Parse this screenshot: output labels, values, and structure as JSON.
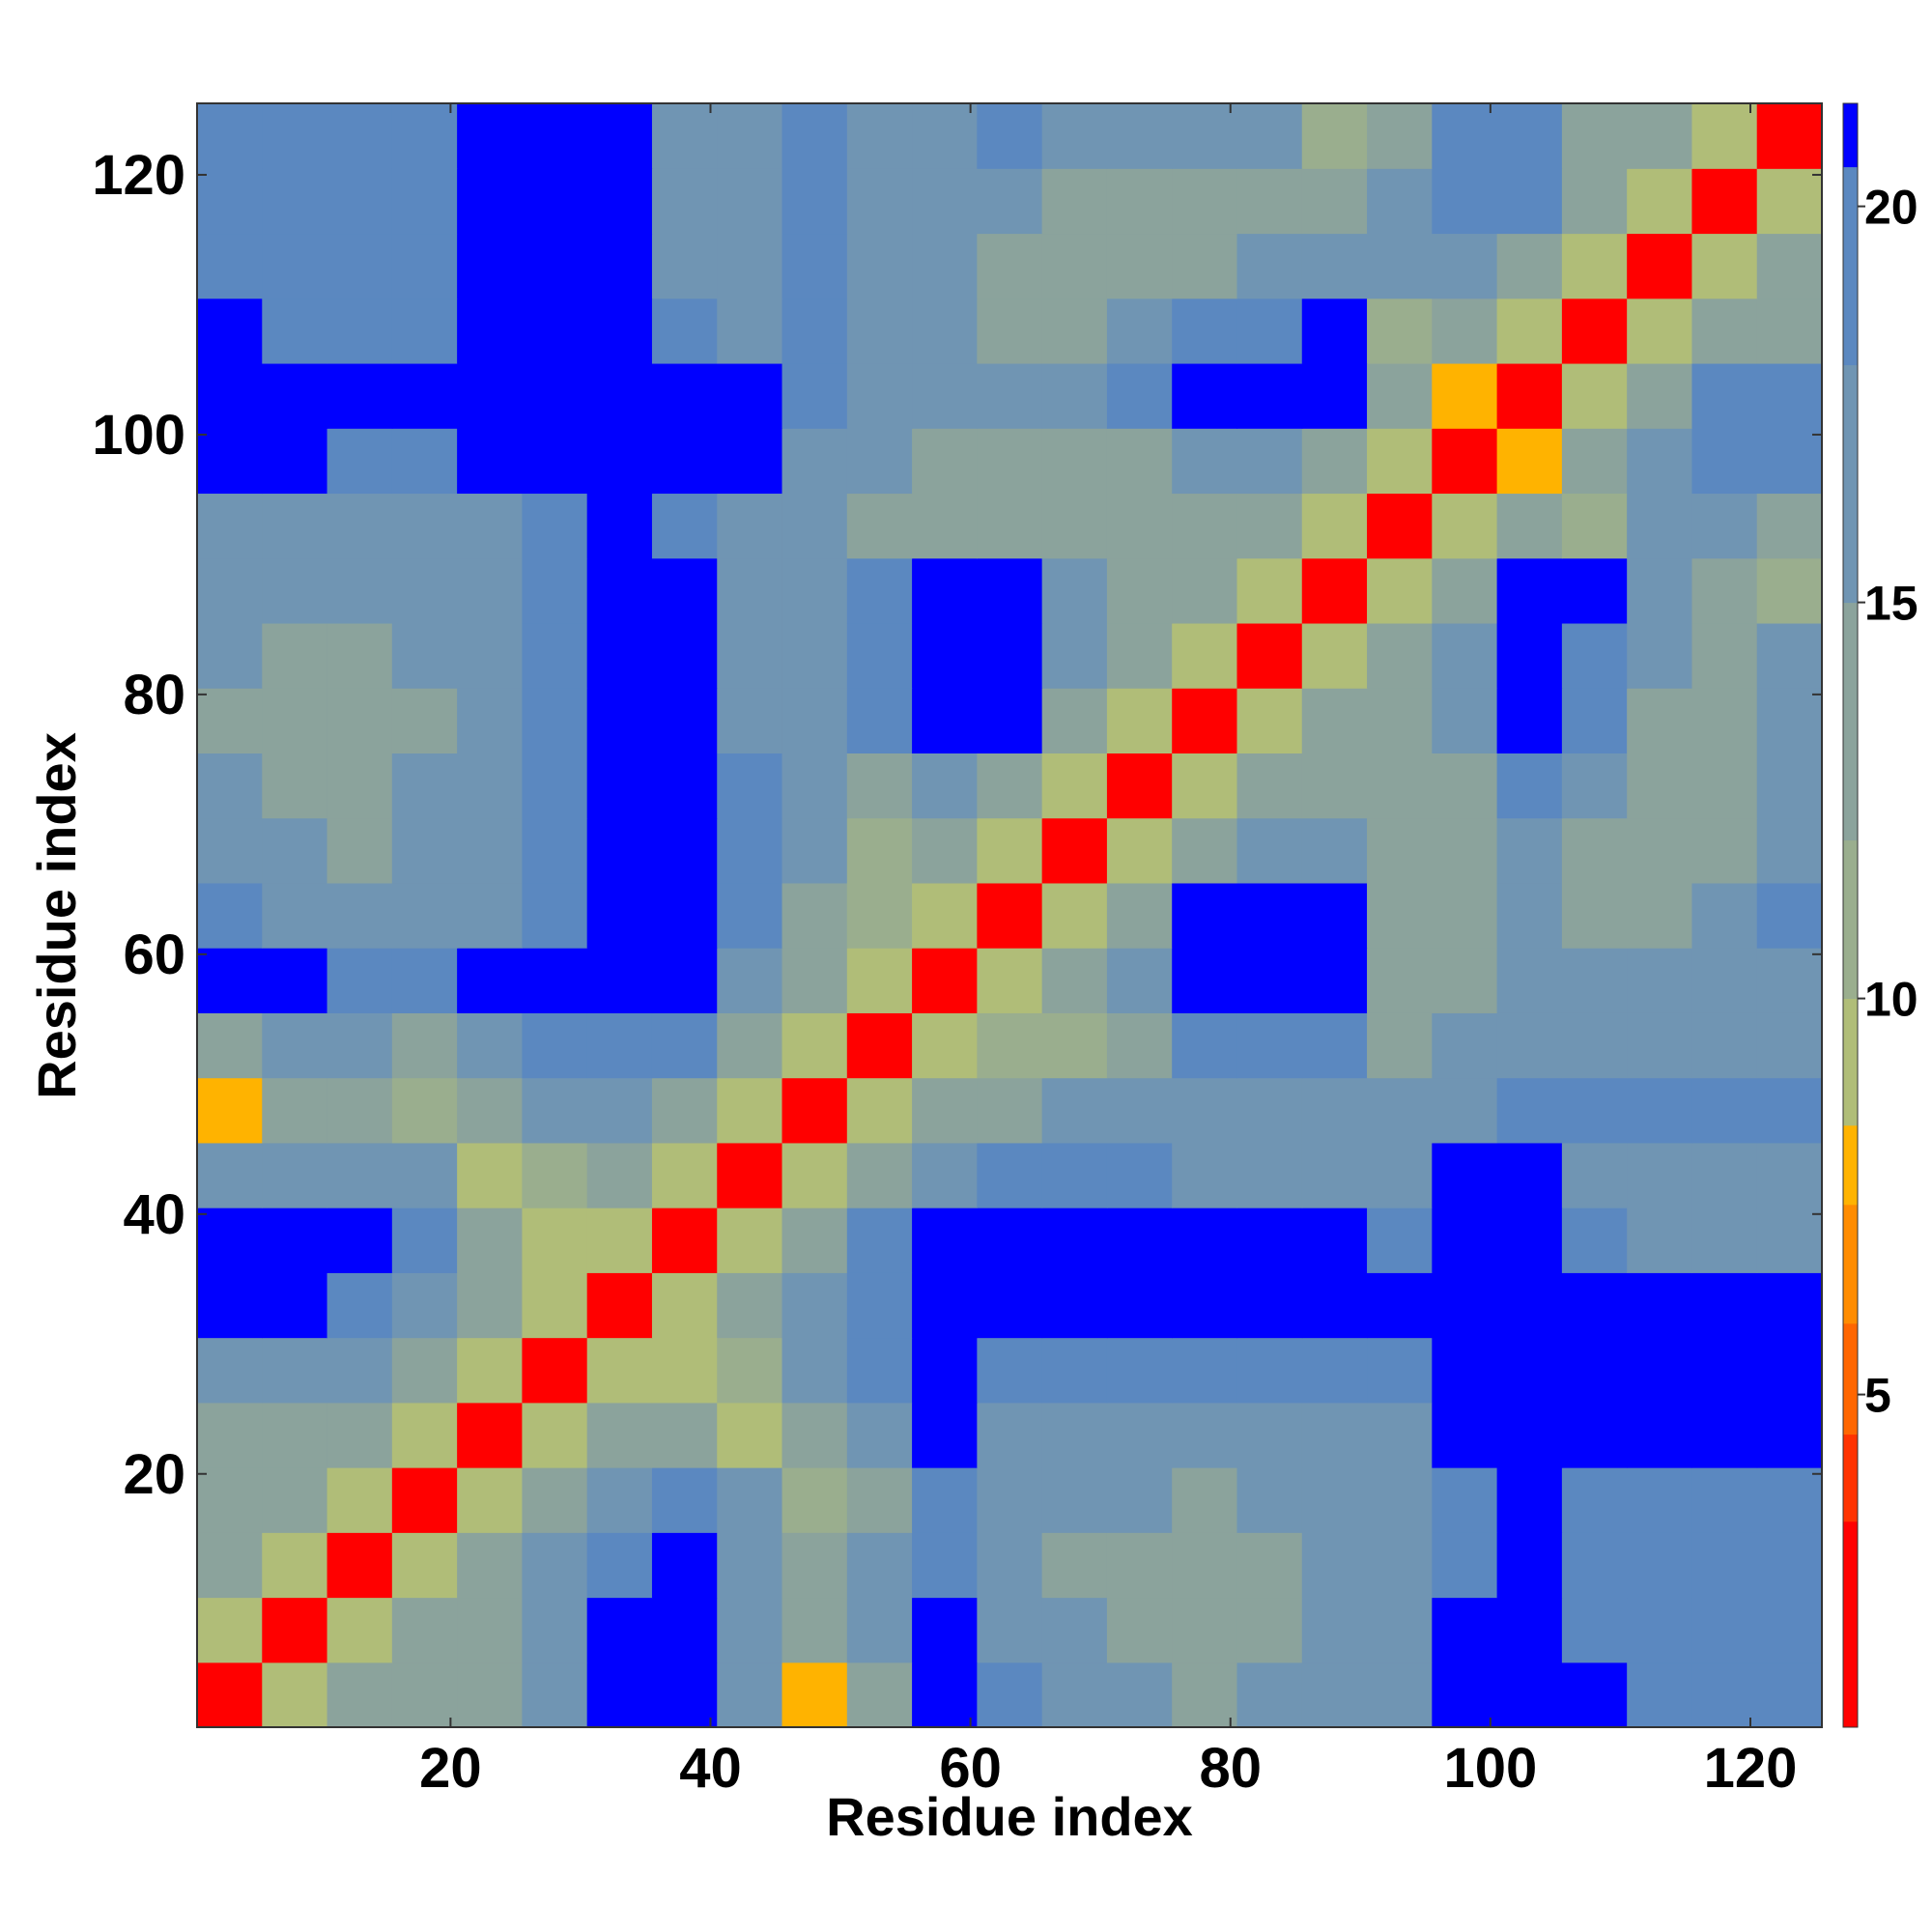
{
  "chart_data": {
    "type": "heatmap",
    "xlabel": "Residue index",
    "ylabel": "Residue index",
    "x": [
      3,
      8,
      13,
      18,
      23,
      28,
      33,
      38,
      43,
      48,
      53,
      58,
      63,
      68,
      73,
      78,
      83,
      88,
      93,
      98,
      103,
      108,
      113,
      118,
      123
    ],
    "y": [
      3,
      8,
      13,
      18,
      23,
      28,
      33,
      38,
      43,
      48,
      53,
      58,
      63,
      68,
      73,
      78,
      83,
      88,
      93,
      98,
      103,
      108,
      113,
      118,
      123
    ],
    "z": [
      [
        3,
        9,
        12,
        13,
        14,
        15,
        21,
        21,
        15,
        8,
        14,
        21,
        19,
        16,
        16,
        14,
        15,
        16,
        17,
        21,
        21,
        21,
        20,
        19,
        20
      ],
      [
        9,
        3,
        9,
        12,
        13,
        15,
        21,
        21,
        16,
        12,
        15,
        21,
        17,
        15,
        14,
        14,
        14,
        15,
        16,
        21,
        21,
        20,
        19,
        19,
        20
      ],
      [
        12,
        9,
        3,
        9,
        12,
        15,
        19,
        21,
        17,
        13,
        15,
        19,
        16,
        13,
        12,
        13,
        14,
        15,
        16,
        20,
        21,
        20,
        19,
        19,
        19
      ],
      [
        13,
        12,
        9,
        3,
        9,
        13,
        16,
        20,
        16,
        11,
        14,
        18,
        17,
        15,
        15,
        14,
        15,
        16,
        16,
        20,
        21,
        20,
        19,
        19,
        19
      ],
      [
        14,
        13,
        12,
        9,
        3,
        9,
        12,
        14,
        9,
        12,
        17,
        21,
        16,
        15,
        15,
        15,
        15,
        16,
        17,
        21,
        21,
        21,
        21,
        21,
        21
      ],
      [
        15,
        15,
        15,
        13,
        9,
        3,
        9,
        9,
        11,
        15,
        19,
        21,
        19,
        19,
        19,
        19,
        19,
        19,
        19,
        21,
        21,
        21,
        21,
        21,
        21
      ],
      [
        21,
        21,
        19,
        16,
        12,
        9,
        3,
        9,
        13,
        15,
        18,
        21,
        21,
        21,
        21,
        21,
        21,
        21,
        21,
        21,
        21,
        21,
        21,
        21,
        21
      ],
      [
        21,
        21,
        21,
        20,
        14,
        9,
        9,
        3,
        9,
        13,
        18,
        21,
        21,
        21,
        21,
        21,
        21,
        21,
        20,
        21,
        21,
        20,
        17,
        16,
        17
      ],
      [
        15,
        16,
        17,
        16,
        9,
        11,
        13,
        9,
        3,
        9,
        13,
        16,
        19,
        19,
        18,
        16,
        16,
        16,
        17,
        21,
        21,
        17,
        15,
        15,
        16
      ],
      [
        8,
        12,
        13,
        11,
        12,
        15,
        15,
        13,
        9,
        3,
        9,
        12,
        14,
        15,
        16,
        16,
        16,
        15,
        16,
        17,
        19,
        19,
        19,
        19,
        20
      ],
      [
        14,
        15,
        15,
        14,
        17,
        19,
        18,
        18,
        13,
        9,
        3,
        9,
        11,
        10,
        13,
        18,
        18,
        18,
        14,
        15,
        16,
        17,
        16,
        16,
        17
      ],
      [
        21,
        21,
        19,
        18,
        21,
        21,
        21,
        21,
        16,
        12,
        9,
        3,
        9,
        12,
        16,
        21,
        21,
        21,
        14,
        13,
        17,
        17,
        16,
        15,
        17
      ],
      [
        19,
        17,
        16,
        17,
        16,
        19,
        21,
        21,
        19,
        14,
        11,
        9,
        3,
        9,
        13,
        21,
        21,
        21,
        13,
        12,
        16,
        12,
        13,
        15,
        18
      ],
      [
        16,
        15,
        13,
        15,
        15,
        19,
        21,
        21,
        19,
        15,
        10,
        12,
        9,
        3,
        9,
        12,
        16,
        17,
        13,
        12,
        17,
        14,
        12,
        13,
        16
      ],
      [
        16,
        14,
        12,
        15,
        15,
        19,
        21,
        21,
        18,
        16,
        13,
        16,
        13,
        9,
        3,
        9,
        12,
        14,
        14,
        14,
        19,
        16,
        13,
        12,
        15
      ],
      [
        14,
        14,
        13,
        14,
        15,
        19,
        21,
        21,
        16,
        16,
        18,
        21,
        21,
        12,
        9,
        3,
        9,
        12,
        14,
        16,
        21,
        18,
        14,
        12,
        15
      ],
      [
        15,
        14,
        14,
        15,
        15,
        19,
        21,
        21,
        16,
        16,
        18,
        21,
        21,
        16,
        12,
        9,
        3,
        9,
        12,
        15,
        21,
        20,
        16,
        13,
        15
      ],
      [
        16,
        15,
        15,
        16,
        16,
        19,
        21,
        21,
        16,
        15,
        18,
        21,
        21,
        17,
        14,
        12,
        9,
        3,
        9,
        12,
        21,
        21,
        17,
        14,
        10
      ],
      [
        17,
        16,
        16,
        16,
        17,
        19,
        21,
        20,
        17,
        16,
        14,
        14,
        13,
        13,
        14,
        14,
        12,
        9,
        3,
        9,
        12,
        11,
        15,
        16,
        13
      ],
      [
        21,
        21,
        20,
        20,
        21,
        21,
        21,
        21,
        21,
        17,
        15,
        13,
        12,
        12,
        14,
        16,
        15,
        12,
        9,
        3,
        8,
        13,
        17,
        20,
        20
      ],
      [
        21,
        21,
        21,
        21,
        21,
        21,
        21,
        21,
        21,
        19,
        16,
        17,
        16,
        17,
        19,
        21,
        21,
        21,
        12,
        8,
        3,
        9,
        13,
        20,
        19
      ],
      [
        21,
        20,
        20,
        20,
        21,
        21,
        21,
        20,
        17,
        19,
        17,
        17,
        12,
        14,
        16,
        18,
        20,
        21,
        11,
        13,
        9,
        3,
        9,
        12,
        13
      ],
      [
        20,
        19,
        19,
        19,
        21,
        21,
        21,
        17,
        15,
        19,
        16,
        16,
        13,
        12,
        13,
        14,
        16,
        17,
        15,
        17,
        13,
        9,
        3,
        9,
        12
      ],
      [
        19,
        19,
        19,
        19,
        21,
        21,
        21,
        16,
        15,
        19,
        16,
        15,
        15,
        13,
        12,
        12,
        13,
        14,
        16,
        20,
        20,
        12,
        9,
        3,
        9
      ],
      [
        20,
        20,
        19,
        19,
        21,
        21,
        21,
        17,
        16,
        20,
        17,
        17,
        18,
        16,
        15,
        15,
        15,
        10,
        13,
        20,
        19,
        13,
        12,
        9,
        3
      ]
    ],
    "xlim": [
      0.5,
      125.5
    ],
    "ylim": [
      0.5,
      125.5
    ],
    "xticks": [
      20,
      40,
      60,
      80,
      100,
      120
    ],
    "yticks": [
      20,
      40,
      60,
      80,
      100,
      120
    ],
    "colorbar": {
      "lim": [
        0.8,
        21.3
      ],
      "ticks": [
        5,
        10,
        15,
        20
      ],
      "levels": [
        0.8,
        3.4,
        4.5,
        5.9,
        7.4,
        8.4,
        10,
        12,
        15,
        18,
        20.5,
        21.3
      ],
      "colors": [
        "#ff0000",
        "#ff3300",
        "#ff6600",
        "#ff8c00",
        "#ffb300",
        "#b0bd78",
        "#9aae8e",
        "#8ba39c",
        "#7095b3",
        "#5b88c0",
        "#0000ff"
      ]
    }
  }
}
